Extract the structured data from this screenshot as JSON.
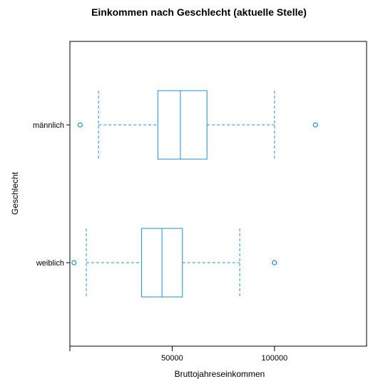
{
  "chart_data": {
    "type": "boxplot",
    "title": "Einkommen nach Geschlecht (aktuelle Stelle)",
    "xlabel": "Bruttojahreseinkommen",
    "ylabel": "Geschlecht",
    "xlim": [
      0,
      145000
    ],
    "x_ticks": [
      50000,
      100000
    ],
    "x_tick_labels": [
      "50000",
      "100000"
    ],
    "orientation": "horizontal",
    "grid": false,
    "legend": "none",
    "box_color": "#1f8fd6",
    "categories": [
      "männlich",
      "weiblich"
    ],
    "boxes": [
      {
        "category": "männlich",
        "whisker_low": 14000,
        "q1": 43000,
        "median": 54000,
        "q3": 67000,
        "whisker_high": 100000,
        "outliers": [
          5000,
          120000
        ]
      },
      {
        "category": "weiblich",
        "whisker_low": 8000,
        "q1": 35000,
        "median": 45000,
        "q3": 55000,
        "whisker_high": 83000,
        "outliers": [
          2000,
          100000
        ]
      }
    ]
  }
}
